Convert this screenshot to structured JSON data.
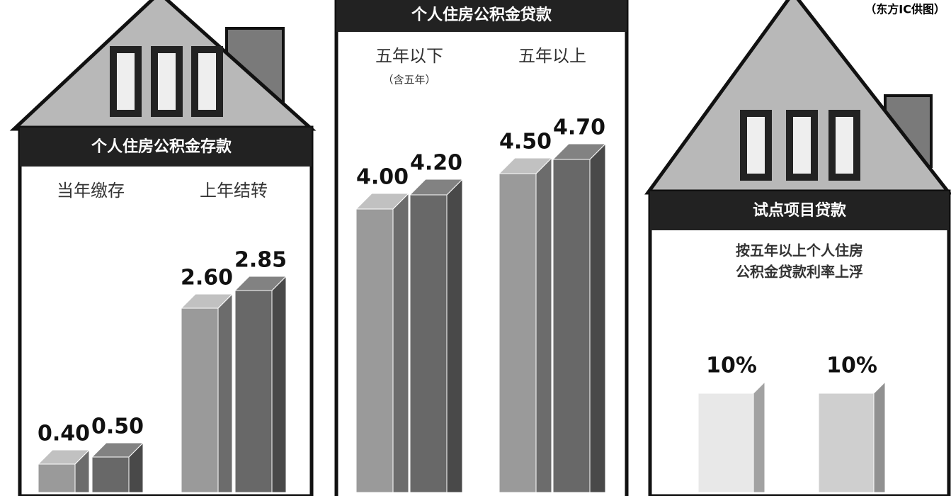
{
  "source": "（东方IC供图）",
  "chart_data": [
    {
      "type": "bar3d",
      "title": "个人住房公积金存款",
      "categories": [
        "当年缴存",
        "上年结转"
      ],
      "series": [
        {
          "color": "#9a9a9a",
          "values": [
            0.4,
            2.6
          ],
          "value_labels": [
            "0.40",
            "2.60"
          ]
        },
        {
          "color": "#686868",
          "values": [
            0.5,
            2.85
          ],
          "value_labels": [
            "0.50",
            "2.85"
          ]
        }
      ]
    },
    {
      "type": "bar3d",
      "title": "个人住房公积金贷款",
      "categories": [
        "五年以下",
        "五年以上"
      ],
      "annotations": [
        "（含五年）"
      ],
      "series": [
        {
          "color": "#9a9a9a",
          "values": [
            4.0,
            4.5
          ],
          "value_labels": [
            "4.00",
            "4.50"
          ]
        },
        {
          "color": "#686868",
          "values": [
            4.2,
            4.7
          ],
          "value_labels": [
            "4.20",
            "4.70"
          ]
        }
      ]
    },
    {
      "type": "bar3d",
      "title": "试点项目贷款",
      "subtitle": [
        "按五年以上个人住房",
        "公积金贷款利率上浮"
      ],
      "categories": [
        null
      ],
      "series": [
        {
          "color": "#e8e8e8",
          "values": [
            10
          ],
          "value_labels": [
            "10%"
          ]
        },
        {
          "color": "#cfcfcf",
          "values": [
            10
          ],
          "value_labels": [
            "10%"
          ]
        }
      ]
    }
  ]
}
